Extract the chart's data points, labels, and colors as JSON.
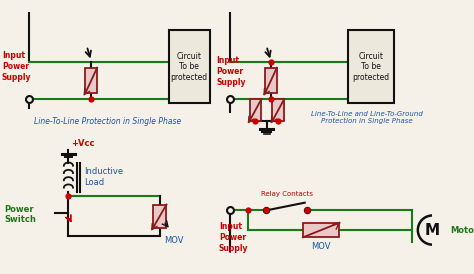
{
  "bg_color": "#f5f0e8",
  "dark": "#111111",
  "green": "#1a7a1a",
  "red": "#cc0000",
  "blue": "#1a55aa",
  "mov_fill": "#e8c8c8",
  "mov_edge": "#8b1a1a",
  "box_fill": "#ece8dc",
  "title1": "Line-To-Line Protection in Single Phase",
  "title2": "Line-To-Line and Line-To-Ground\nProtection in Single Phase",
  "lbl_input1": "Input\nPower\nSupply",
  "lbl_circuit": "Circuit\nTo be\nprotected",
  "lbl_input2": "Input\nPower\nSupply",
  "lbl_vcc": "+Vcc",
  "lbl_inductive": "Inductive\nLoad",
  "lbl_pswitch": "Power\nSwitch",
  "lbl_mov_q3": "MOV",
  "lbl_relay": "Relay Contacts",
  "lbl_mov_q4": "MOV",
  "lbl_motor": "Motor",
  "lbl_input3": "Input\nPower\nSupply"
}
